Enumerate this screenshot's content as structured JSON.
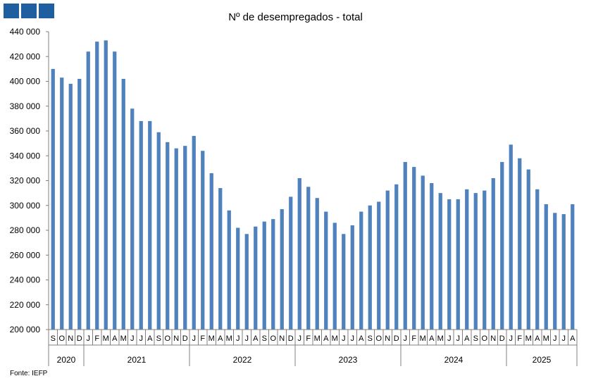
{
  "brand": {
    "logo_color": "#1f5fa0"
  },
  "chart_data": {
    "type": "bar",
    "title": "Nº de desempregados - total",
    "xlabel": "",
    "ylabel": "",
    "ylim": [
      200000,
      440000
    ],
    "yticks": [
      200000,
      220000,
      240000,
      260000,
      280000,
      300000,
      320000,
      340000,
      360000,
      380000,
      400000,
      420000,
      440000
    ],
    "ytick_labels": [
      "200 000",
      "220 000",
      "240 000",
      "260 000",
      "280 000",
      "300 000",
      "320 000",
      "340 000",
      "360 000",
      "380 000",
      "400 000",
      "420 000",
      "440 000"
    ],
    "grid": false,
    "bar_color": "#4f81bd",
    "categories": [
      "S",
      "O",
      "N",
      "D",
      "J",
      "F",
      "M",
      "A",
      "M",
      "J",
      "J",
      "A",
      "S",
      "O",
      "N",
      "D",
      "J",
      "F",
      "M",
      "A",
      "M",
      "J",
      "J",
      "A",
      "S",
      "O",
      "N",
      "D",
      "J",
      "F",
      "M",
      "A",
      "M",
      "J",
      "J",
      "A",
      "S",
      "O",
      "N",
      "D",
      "J",
      "F",
      "M",
      "A",
      "M",
      "J",
      "J",
      "A",
      "S",
      "O",
      "N",
      "D",
      "J",
      "F",
      "M",
      "A",
      "M",
      "J",
      "J",
      "A"
    ],
    "years": [
      {
        "label": "2020",
        "count": 4
      },
      {
        "label": "2021",
        "count": 12
      },
      {
        "label": "2022",
        "count": 12
      },
      {
        "label": "2023",
        "count": 12
      },
      {
        "label": "2024",
        "count": 12
      },
      {
        "label": "2025",
        "count": 8
      }
    ],
    "values": [
      410000,
      403000,
      398000,
      402000,
      424000,
      432000,
      433000,
      424000,
      402000,
      378000,
      368000,
      368000,
      359000,
      351000,
      346000,
      348000,
      356000,
      344000,
      326000,
      314000,
      296000,
      282000,
      277000,
      283000,
      287000,
      289000,
      297000,
      307000,
      322000,
      315000,
      306000,
      295000,
      286000,
      277000,
      284000,
      295000,
      300000,
      303000,
      312000,
      317000,
      335000,
      331000,
      324000,
      318000,
      310000,
      305000,
      305000,
      313000,
      310000,
      312000,
      322000,
      335000,
      349000,
      338000,
      329000,
      313000,
      301000,
      294000,
      293000,
      301000
    ]
  },
  "source": "Fonte:  IEFP"
}
